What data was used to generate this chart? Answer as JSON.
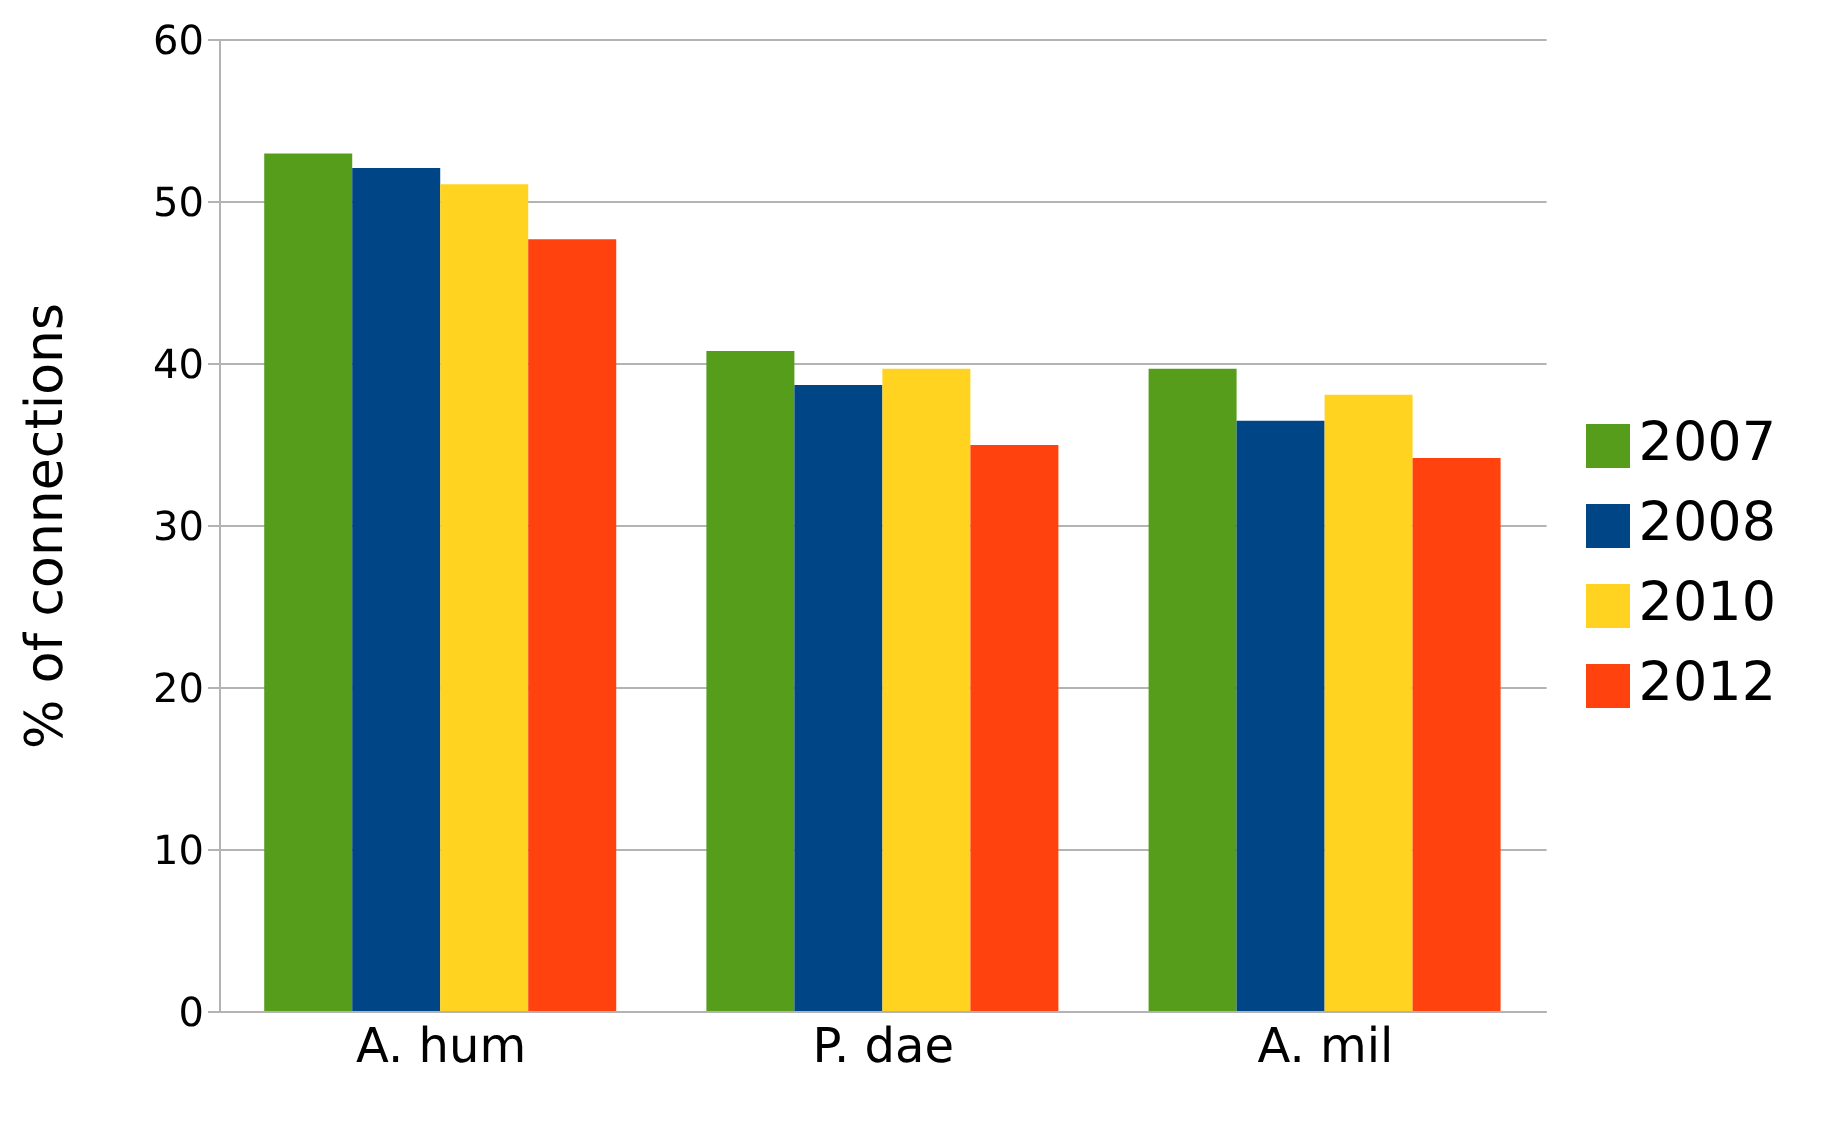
{
  "chart_data": {
    "type": "bar",
    "ylabel": "% of connections",
    "categories": [
      "A. hum",
      "P. dae",
      "A. mil"
    ],
    "series": [
      {
        "name": "2007",
        "color": "#579d1c",
        "values": [
          53.0,
          40.8,
          39.7
        ]
      },
      {
        "name": "2008",
        "color": "#004586",
        "values": [
          52.1,
          38.7,
          36.5
        ]
      },
      {
        "name": "2010",
        "color": "#ffd320",
        "values": [
          51.1,
          39.7,
          38.1
        ]
      },
      {
        "name": "2012",
        "color": "#ff420e",
        "values": [
          47.7,
          35.0,
          34.2
        ]
      }
    ],
    "ylim": [
      0,
      60
    ],
    "yticks": [
      0,
      10,
      20,
      30,
      40,
      50,
      60
    ],
    "grid": "y",
    "legend": "right"
  }
}
